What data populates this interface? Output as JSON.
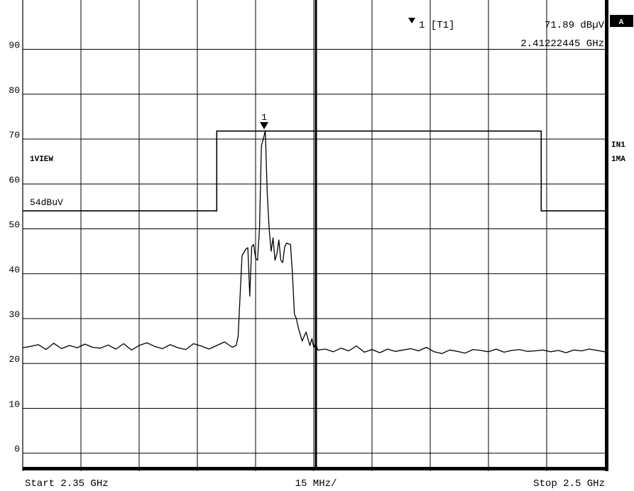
{
  "header": {
    "marker_label": "1 [T1]",
    "marker_level": "71.89 dBµV",
    "marker_freq": "2.41222445 GHz",
    "badge": "A"
  },
  "left_labels": {
    "view": "1VIEW",
    "limit": "54dBuV"
  },
  "right_labels": {
    "in1": "IN1",
    "ma1": "1MA"
  },
  "footer": {
    "start": "Start 2.35 GHz",
    "div": "15 MHz/",
    "stop": "Stop 2.5 GHz"
  },
  "colors": {
    "trace": "#000000",
    "grid": "#000000",
    "background": "#ffffff"
  },
  "chart_data": {
    "type": "line",
    "xlim": [
      2.35,
      2.5
    ],
    "ylim": [
      -4,
      101
    ],
    "yticks": [
      "0",
      "10",
      "20",
      "30",
      "40",
      "50",
      "60",
      "70",
      "80",
      "90"
    ],
    "grid": true,
    "marker": {
      "label": "1",
      "x": 2.4122,
      "y": 71.89
    },
    "limit_line": {
      "x": [
        2.35,
        2.4,
        2.4,
        2.4836,
        2.4836,
        2.5
      ],
      "y": [
        54,
        54,
        71.8,
        71.8,
        54,
        54
      ]
    },
    "series": [
      {
        "x": [
          2.35,
          2.352,
          2.354,
          2.356,
          2.358,
          2.36,
          2.362,
          2.364,
          2.366,
          2.368,
          2.37,
          2.372,
          2.374,
          2.376,
          2.378,
          2.38,
          2.382,
          2.384,
          2.386,
          2.388,
          2.39,
          2.392,
          2.394,
          2.396,
          2.398,
          2.4,
          2.402,
          2.404,
          2.405,
          2.4055,
          2.4065,
          2.4075,
          2.408,
          2.4085,
          2.409,
          2.4095,
          2.41,
          2.4105,
          2.411,
          2.4115,
          2.412,
          2.4125,
          2.413,
          2.4135,
          2.414,
          2.4145,
          2.415,
          2.4155,
          2.416,
          2.4165,
          2.417,
          2.4175,
          2.418,
          2.419,
          2.4195,
          2.42,
          2.4205,
          2.421,
          2.422,
          2.423,
          2.424,
          2.4245,
          2.425,
          2.4255,
          2.426,
          2.428,
          2.43,
          2.432,
          2.434,
          2.436,
          2.438,
          2.44,
          2.442,
          2.444,
          2.446,
          2.448,
          2.45,
          2.452,
          2.454,
          2.456,
          2.458,
          2.46,
          2.462,
          2.464,
          2.466,
          2.468,
          2.47,
          2.472,
          2.474,
          2.476,
          2.478,
          2.48,
          2.482,
          2.484,
          2.486,
          2.488,
          2.49,
          2.492,
          2.494,
          2.496,
          2.498,
          2.5
        ],
        "y": [
          23.5,
          23.8,
          24.2,
          23.1,
          24.5,
          23.3,
          24.0,
          23.5,
          24.3,
          23.6,
          23.4,
          24.1,
          23.2,
          24.4,
          23.0,
          24.0,
          24.6,
          23.8,
          23.3,
          24.2,
          23.5,
          23.1,
          24.4,
          23.9,
          23.2,
          24.0,
          24.8,
          23.6,
          24.0,
          26.0,
          44.0,
          45.5,
          45.8,
          35.0,
          46.0,
          46.5,
          43.5,
          43.0,
          50.0,
          68.5,
          70.0,
          71.9,
          58.0,
          50.0,
          45.0,
          48.0,
          43.0,
          44.5,
          47.5,
          43.0,
          42.5,
          46.0,
          46.8,
          46.5,
          40.0,
          31.0,
          30.0,
          28.0,
          25.0,
          27.0,
          24.0,
          25.5,
          23.5,
          24.5,
          23.0,
          23.2,
          22.6,
          23.4,
          22.8,
          23.9,
          22.5,
          23.1,
          22.4,
          23.2,
          22.7,
          23.0,
          23.3,
          22.8,
          23.6,
          22.6,
          22.2,
          23.0,
          22.7,
          22.3,
          23.1,
          22.9,
          22.6,
          23.2,
          22.5,
          22.9,
          23.1,
          22.7,
          22.8,
          23.0,
          22.6,
          22.9,
          22.4,
          23.0,
          22.8,
          23.2,
          22.9,
          22.6
        ]
      }
    ]
  }
}
